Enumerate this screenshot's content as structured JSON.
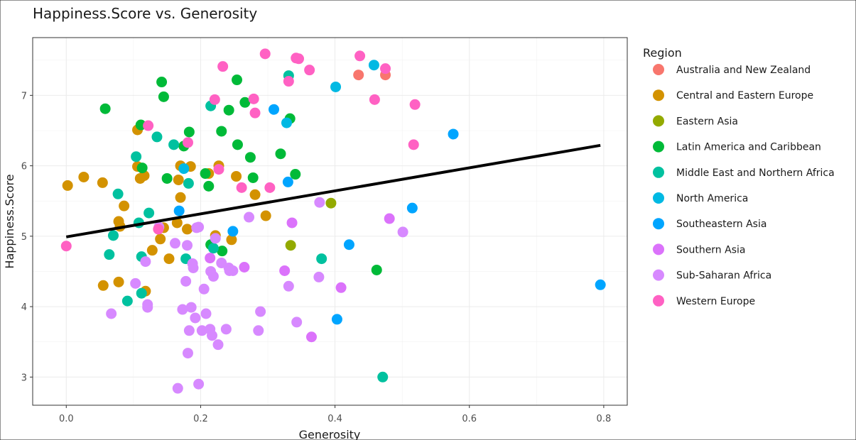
{
  "chart_data": {
    "type": "scatter",
    "title": "Happiness.Score vs. Generosity",
    "xlabel": "Generosity",
    "ylabel": "Happiness.Score",
    "xlim": [
      -0.05,
      0.835
    ],
    "ylim": [
      2.6,
      7.82
    ],
    "x_ticks": [
      0.0,
      0.2,
      0.4,
      0.6,
      0.8
    ],
    "x_tick_labels": [
      "0.0",
      "0.2",
      "0.4",
      "0.6",
      "0.8"
    ],
    "y_ticks": [
      3,
      4,
      5,
      6,
      7
    ],
    "y_tick_labels": [
      "3",
      "4",
      "5",
      "6",
      "7"
    ],
    "grid": true,
    "legend": {
      "title": "Region",
      "placement": "right"
    },
    "trendline": {
      "x": [
        0.0,
        0.795
      ],
      "y": [
        4.99,
        6.29
      ],
      "color": "#000000"
    },
    "series": [
      {
        "name": "Australia and New Zealand",
        "color": "#F8766D",
        "points": [
          [
            0.435,
            7.29
          ],
          [
            0.475,
            7.29
          ]
        ]
      },
      {
        "name": "Central and Eastern Europe",
        "color": "#D39200",
        "points": [
          [
            0.002,
            5.72
          ],
          [
            0.026,
            5.84
          ],
          [
            0.054,
            5.76
          ],
          [
            0.055,
            4.3
          ],
          [
            0.078,
            5.21
          ],
          [
            0.08,
            5.14
          ],
          [
            0.078,
            4.35
          ],
          [
            0.086,
            5.43
          ],
          [
            0.106,
            6.51
          ],
          [
            0.106,
            5.99
          ],
          [
            0.11,
            5.82
          ],
          [
            0.116,
            5.86
          ],
          [
            0.118,
            4.22
          ],
          [
            0.128,
            4.8
          ],
          [
            0.14,
            4.96
          ],
          [
            0.145,
            5.12
          ],
          [
            0.153,
            4.68
          ],
          [
            0.165,
            5.19
          ],
          [
            0.167,
            5.8
          ],
          [
            0.17,
            6.0
          ],
          [
            0.17,
            5.55
          ],
          [
            0.18,
            5.1
          ],
          [
            0.185,
            5.99
          ],
          [
            0.212,
            5.89
          ],
          [
            0.222,
            5.01
          ],
          [
            0.227,
            6.0
          ],
          [
            0.246,
            4.95
          ],
          [
            0.253,
            5.85
          ],
          [
            0.281,
            5.59
          ],
          [
            0.297,
            5.29
          ]
        ]
      },
      {
        "name": "Eastern Asia",
        "color": "#93AA00",
        "points": [
          [
            0.334,
            4.87
          ],
          [
            0.394,
            5.47
          ]
        ]
      },
      {
        "name": "Latin America and Caribbean",
        "color": "#00BA38",
        "points": [
          [
            0.058,
            6.81
          ],
          [
            0.111,
            6.58
          ],
          [
            0.113,
            5.97
          ],
          [
            0.142,
            7.19
          ],
          [
            0.145,
            6.98
          ],
          [
            0.15,
            5.82
          ],
          [
            0.175,
            6.28
          ],
          [
            0.183,
            6.48
          ],
          [
            0.207,
            5.89
          ],
          [
            0.212,
            5.71
          ],
          [
            0.215,
            4.88
          ],
          [
            0.231,
            6.49
          ],
          [
            0.232,
            4.79
          ],
          [
            0.242,
            6.79
          ],
          [
            0.254,
            7.22
          ],
          [
            0.255,
            6.3
          ],
          [
            0.266,
            6.9
          ],
          [
            0.274,
            6.12
          ],
          [
            0.278,
            5.83
          ],
          [
            0.319,
            6.17
          ],
          [
            0.333,
            6.67
          ],
          [
            0.341,
            5.88
          ],
          [
            0.462,
            4.52
          ]
        ]
      },
      {
        "name": "Middle East and Northern Africa",
        "color": "#00C19F",
        "points": [
          [
            0.064,
            4.74
          ],
          [
            0.07,
            5.01
          ],
          [
            0.077,
            5.6
          ],
          [
            0.091,
            4.08
          ],
          [
            0.104,
            6.13
          ],
          [
            0.108,
            5.19
          ],
          [
            0.112,
            4.71
          ],
          [
            0.112,
            4.19
          ],
          [
            0.123,
            5.33
          ],
          [
            0.135,
            6.41
          ],
          [
            0.16,
            6.3
          ],
          [
            0.178,
            4.68
          ],
          [
            0.182,
            5.75
          ],
          [
            0.215,
            6.85
          ],
          [
            0.219,
            4.83
          ],
          [
            0.331,
            7.28
          ],
          [
            0.38,
            4.68
          ],
          [
            0.471,
            3.0
          ]
        ]
      },
      {
        "name": "North America",
        "color": "#00B9E3",
        "points": [
          [
            0.175,
            5.96
          ],
          [
            0.328,
            6.61
          ],
          [
            0.401,
            7.12
          ],
          [
            0.458,
            7.43
          ]
        ]
      },
      {
        "name": "Southeastern Asia",
        "color": "#00A5FF",
        "points": [
          [
            0.168,
            5.36
          ],
          [
            0.248,
            5.07
          ],
          [
            0.309,
            6.8
          ],
          [
            0.33,
            5.77
          ],
          [
            0.403,
            3.82
          ],
          [
            0.421,
            4.88
          ],
          [
            0.515,
            5.4
          ],
          [
            0.576,
            6.45
          ],
          [
            0.795,
            4.31
          ]
        ]
      },
      {
        "name": "Southern Asia",
        "color": "#DB72FB",
        "points": [
          [
            0.214,
            4.69
          ],
          [
            0.265,
            4.56
          ],
          [
            0.325,
            4.51
          ],
          [
            0.336,
            5.19
          ],
          [
            0.365,
            3.57
          ],
          [
            0.409,
            4.27
          ],
          [
            0.481,
            5.25
          ]
        ]
      },
      {
        "name": "Sub-Saharan Africa",
        "color": "#D789FF",
        "points": [
          [
            0.067,
            3.9
          ],
          [
            0.103,
            4.33
          ],
          [
            0.118,
            4.64
          ],
          [
            0.121,
            4.03
          ],
          [
            0.121,
            3.99
          ],
          [
            0.138,
            5.13
          ],
          [
            0.162,
            4.9
          ],
          [
            0.166,
            2.84
          ],
          [
            0.173,
            3.96
          ],
          [
            0.178,
            4.36
          ],
          [
            0.18,
            4.87
          ],
          [
            0.181,
            3.34
          ],
          [
            0.183,
            3.66
          ],
          [
            0.186,
            3.99
          ],
          [
            0.188,
            4.61
          ],
          [
            0.189,
            4.55
          ],
          [
            0.192,
            3.84
          ],
          [
            0.194,
            5.12
          ],
          [
            0.197,
            5.13
          ],
          [
            0.197,
            2.9
          ],
          [
            0.202,
            3.66
          ],
          [
            0.205,
            4.25
          ],
          [
            0.208,
            3.9
          ],
          [
            0.214,
            3.68
          ],
          [
            0.215,
            4.5
          ],
          [
            0.217,
            3.59
          ],
          [
            0.219,
            4.43
          ],
          [
            0.222,
            4.97
          ],
          [
            0.226,
            3.46
          ],
          [
            0.231,
            4.62
          ],
          [
            0.238,
            3.68
          ],
          [
            0.242,
            4.55
          ],
          [
            0.243,
            4.51
          ],
          [
            0.248,
            4.51
          ],
          [
            0.272,
            5.27
          ],
          [
            0.286,
            3.66
          ],
          [
            0.289,
            3.93
          ],
          [
            0.331,
            4.29
          ],
          [
            0.343,
            3.78
          ],
          [
            0.376,
            4.42
          ],
          [
            0.377,
            5.48
          ],
          [
            0.501,
            5.06
          ]
        ]
      },
      {
        "name": "Western Europe",
        "color": "#FF61C3",
        "points": [
          [
            0.0,
            4.86
          ],
          [
            0.122,
            6.57
          ],
          [
            0.137,
            5.1
          ],
          [
            0.181,
            6.33
          ],
          [
            0.221,
            6.94
          ],
          [
            0.227,
            5.95
          ],
          [
            0.233,
            7.41
          ],
          [
            0.261,
            5.69
          ],
          [
            0.279,
            6.95
          ],
          [
            0.281,
            6.75
          ],
          [
            0.296,
            7.59
          ],
          [
            0.303,
            5.69
          ],
          [
            0.331,
            7.2
          ],
          [
            0.342,
            7.53
          ],
          [
            0.346,
            7.52
          ],
          [
            0.362,
            7.36
          ],
          [
            0.437,
            7.56
          ],
          [
            0.459,
            6.94
          ],
          [
            0.475,
            7.38
          ],
          [
            0.517,
            6.3
          ],
          [
            0.519,
            6.87
          ]
        ]
      }
    ]
  }
}
